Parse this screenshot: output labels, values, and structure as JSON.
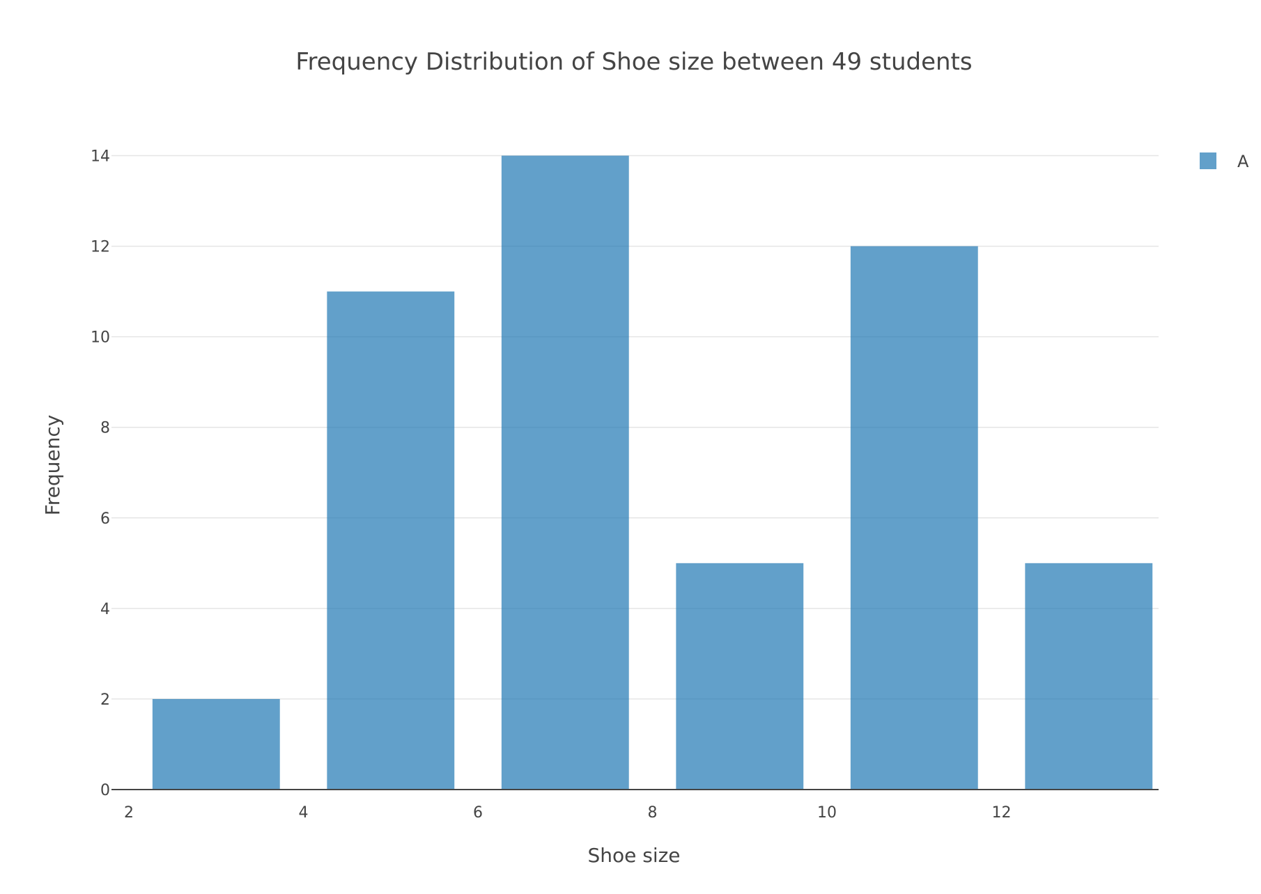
{
  "chart_data": {
    "type": "bar",
    "title": "Frequency Distribution of Shoe size between 49 students",
    "xlabel": "Shoe size",
    "ylabel": "Frequency",
    "x": [
      3,
      5,
      7,
      9,
      11,
      13
    ],
    "bin_width": 2,
    "series": [
      {
        "name": "A",
        "values": [
          2,
          11,
          14,
          5,
          12,
          5
        ],
        "color": "#1f77b4",
        "opacity": 0.7
      }
    ],
    "xlim": [
      1.8,
      13.8
    ],
    "ylim": [
      0,
      14.7
    ],
    "x_ticks": [
      2,
      4,
      6,
      8,
      10,
      12
    ],
    "y_ticks": [
      0,
      2,
      4,
      6,
      8,
      10,
      12,
      14
    ],
    "grid": true,
    "legend": "top-right"
  }
}
